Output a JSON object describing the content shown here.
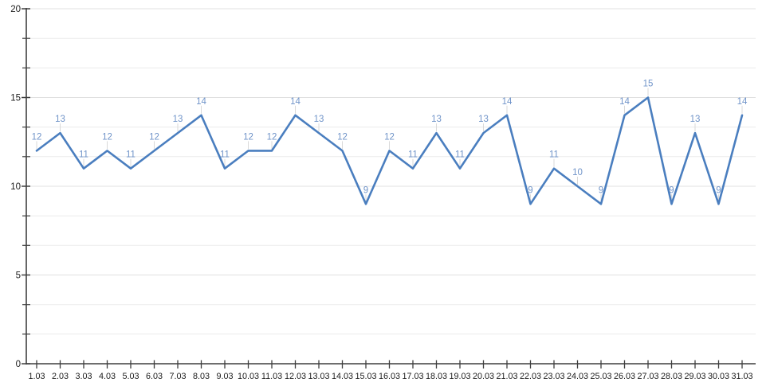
{
  "chart_data": {
    "type": "line",
    "title": "",
    "xlabel": "",
    "ylabel": "",
    "categories": [
      "1.03",
      "2.03",
      "3.03",
      "4.03",
      "5.03",
      "6.03",
      "7.03",
      "8.03",
      "9.03",
      "10.03",
      "11.03",
      "12.03",
      "13.03",
      "14.03",
      "15.03",
      "16.03",
      "17.03",
      "18.03",
      "19.03",
      "20.03",
      "21.03",
      "22.03",
      "23.03",
      "24.03",
      "25.03",
      "26.03",
      "27.03",
      "28.03",
      "29.03",
      "30.03",
      "31.03"
    ],
    "values": [
      12,
      13,
      11,
      12,
      11,
      12,
      13,
      14,
      11,
      12,
      12,
      14,
      13,
      12,
      9,
      12,
      11,
      13,
      11,
      13,
      14,
      9,
      11,
      10,
      9,
      14,
      15,
      9,
      13,
      9,
      14
    ],
    "point_labels": [
      "12",
      "13",
      "11",
      "12",
      "11",
      "12",
      "13",
      "14",
      "11",
      "12",
      "12",
      "14",
      "13",
      "12",
      "9",
      "12",
      "11",
      "13",
      "11",
      "13",
      "14",
      "9",
      "11",
      "10",
      "9",
      "14",
      "15",
      "9",
      "13",
      "9",
      "14"
    ],
    "ylim": [
      0,
      20
    ],
    "y_major_ticks": [
      0,
      5,
      10,
      15,
      20
    ],
    "y_minor_divisions_per_major": 3,
    "grid": "horizontal",
    "legend": "none",
    "colors": {
      "line": "#4a7ebf",
      "point_label": "#7094c9",
      "leader_line": "#d9d9d9",
      "axis": "#3f3f3f",
      "axis_label": "#1c1c1c",
      "grid_major": "#e0e0e0",
      "grid_minor": "#ebebeb",
      "background": "#ffffff"
    }
  }
}
